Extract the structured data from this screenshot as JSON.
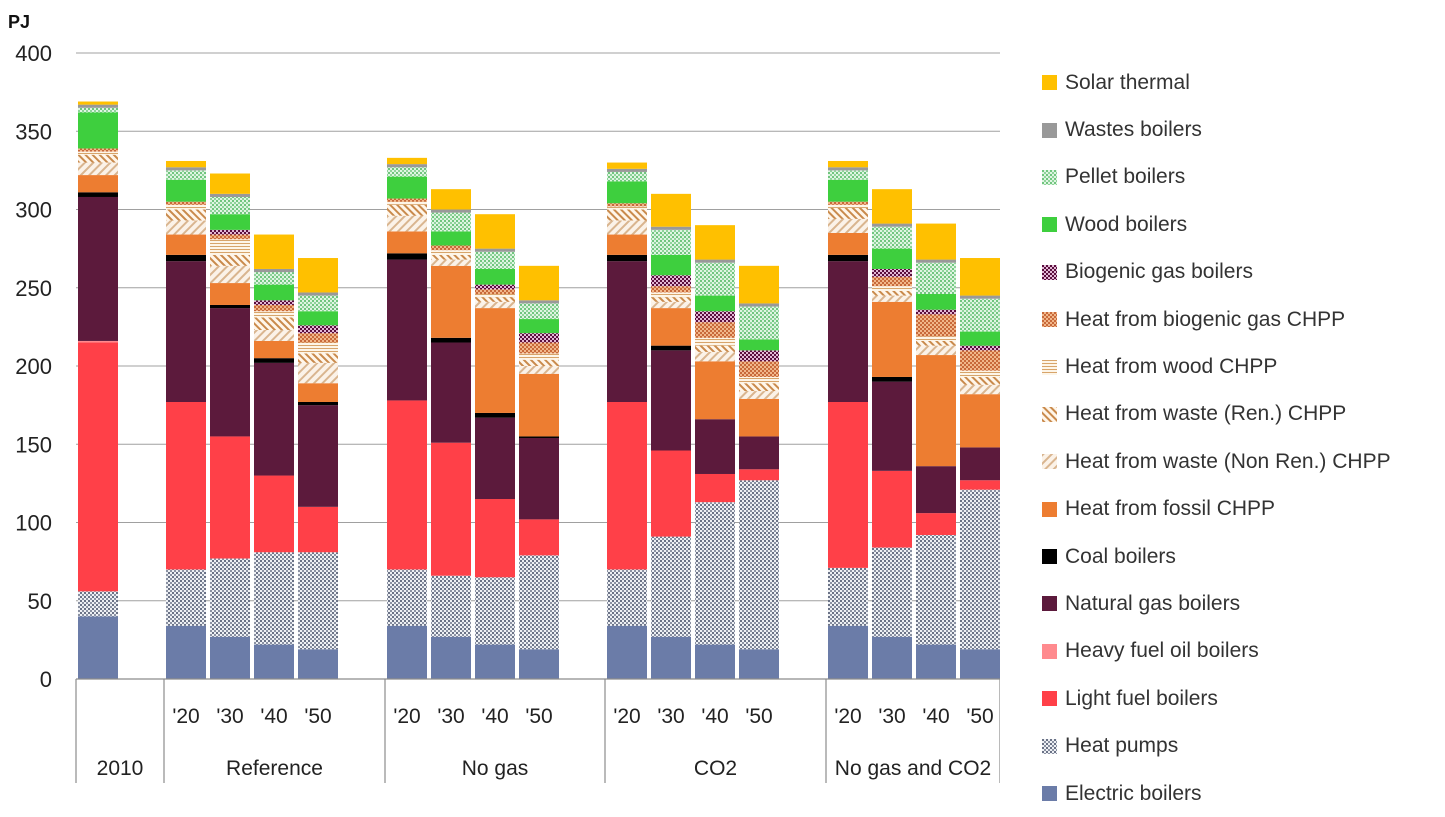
{
  "chart_data": {
    "type": "stacked-bar",
    "ylabel": "PJ",
    "ylim": [
      0,
      400
    ],
    "yticks": [
      0,
      50,
      100,
      150,
      200,
      250,
      300,
      350,
      400
    ],
    "grid": true,
    "legend_position": "right",
    "groups": [
      {
        "name": "2010",
        "categories": [
          ""
        ]
      },
      {
        "name": "Reference",
        "categories": [
          "'20",
          "'30",
          "'40",
          "'50"
        ]
      },
      {
        "name": "No gas",
        "categories": [
          "'20",
          "'30",
          "'40",
          "'50"
        ]
      },
      {
        "name": "CO2",
        "categories": [
          "'20",
          "'30",
          "'40",
          "'50"
        ]
      },
      {
        "name": "No gas and CO2",
        "categories": [
          "'20",
          "'30",
          "'40",
          "'50"
        ]
      }
    ],
    "series": [
      {
        "name": "Electric boilers",
        "color": "#6b7ca8",
        "pattern": "solid",
        "values": [
          40,
          34,
          27,
          22,
          19,
          34,
          27,
          22,
          19,
          34,
          27,
          22,
          19,
          34,
          27,
          22,
          19
        ]
      },
      {
        "name": "Heat pumps",
        "color": "#9aa3b5",
        "pattern": "dots",
        "values": [
          16,
          36,
          50,
          59,
          62,
          36,
          39,
          43,
          60,
          36,
          64,
          91,
          108,
          37,
          57,
          70,
          102
        ]
      },
      {
        "name": "Light fuel boilers",
        "color": "#ff4048",
        "pattern": "solid",
        "values": [
          159,
          107,
          78,
          49,
          29,
          108,
          85,
          50,
          23,
          107,
          55,
          18,
          7,
          106,
          49,
          14,
          6
        ]
      },
      {
        "name": "Heavy fuel oil boilers",
        "color": "#ff8a8e",
        "pattern": "solid",
        "values": [
          1,
          0,
          0,
          0,
          0,
          0,
          0,
          0,
          0,
          0,
          0,
          0,
          0,
          0,
          0,
          0,
          0
        ]
      },
      {
        "name": "Natural gas  boilers",
        "color": "#5c1a3c",
        "pattern": "solid",
        "values": [
          92,
          90,
          82,
          72,
          65,
          90,
          64,
          52,
          52,
          90,
          64,
          35,
          21,
          90,
          57,
          30,
          21
        ]
      },
      {
        "name": "Coal boilers",
        "color": "#000000",
        "pattern": "solid",
        "values": [
          3,
          4,
          2,
          3,
          2,
          4,
          3,
          3,
          1,
          4,
          3,
          0,
          0,
          4,
          3,
          0,
          0
        ]
      },
      {
        "name": "Heat from fossil CHPP",
        "color": "#ed7d31",
        "pattern": "solid",
        "values": [
          11,
          13,
          14,
          11,
          12,
          14,
          46,
          67,
          40,
          13,
          24,
          37,
          24,
          14,
          48,
          71,
          34
        ]
      },
      {
        "name": "Heat from waste (Non Ren.) CHPP",
        "color": "#e3c4a3",
        "pattern": "diag-light",
        "values": [
          8,
          9,
          11,
          7,
          13,
          10,
          4,
          4,
          5,
          9,
          4,
          6,
          5,
          9,
          4,
          6,
          6
        ]
      },
      {
        "name": "Heat from waste (Ren.) CHPP",
        "color": "#d9a26a",
        "pattern": "diag-dark",
        "values": [
          5,
          7,
          7,
          8,
          6,
          7,
          3,
          3,
          4,
          7,
          3,
          4,
          5,
          7,
          3,
          3,
          5
        ]
      },
      {
        "name": "Heat from wood CHPP",
        "color": "#e8c28a",
        "pattern": "hlines",
        "values": [
          2,
          3,
          10,
          4,
          7,
          2,
          3,
          2,
          4,
          2,
          3,
          5,
          4,
          2,
          3,
          3,
          4
        ]
      },
      {
        "name": "Heat from biogenic gas CHPP",
        "color": "#d9804a",
        "pattern": "check",
        "values": [
          2,
          2,
          3,
          4,
          6,
          2,
          3,
          3,
          7,
          2,
          4,
          10,
          10,
          2,
          6,
          14,
          13
        ]
      },
      {
        "name": "Biogenic gas boilers",
        "color": "#6b1a4a",
        "pattern": "check",
        "values": [
          0,
          0,
          3,
          3,
          5,
          0,
          0,
          3,
          6,
          0,
          7,
          7,
          7,
          0,
          5,
          3,
          3
        ]
      },
      {
        "name": "Wood boilers",
        "color": "#3ecf3e",
        "pattern": "solid",
        "values": [
          23,
          14,
          10,
          10,
          9,
          14,
          9,
          10,
          9,
          14,
          13,
          10,
          7,
          14,
          13,
          10,
          9
        ]
      },
      {
        "name": "Pellet boilers",
        "color": "#a8e0b0",
        "pattern": "dots",
        "values": [
          3,
          6,
          11,
          8,
          10,
          6,
          12,
          11,
          10,
          6,
          16,
          21,
          21,
          6,
          14,
          20,
          21
        ]
      },
      {
        "name": "Wastes boilers",
        "color": "#999999",
        "pattern": "solid",
        "values": [
          2,
          2,
          2,
          2,
          2,
          2,
          2,
          2,
          2,
          2,
          2,
          2,
          2,
          2,
          2,
          2,
          2
        ]
      },
      {
        "name": "Solar thermal",
        "color": "#ffc000",
        "pattern": "solid",
        "values": [
          2,
          4,
          13,
          22,
          22,
          4,
          13,
          22,
          22,
          4,
          21,
          22,
          24,
          4,
          22,
          23,
          24
        ]
      }
    ]
  }
}
